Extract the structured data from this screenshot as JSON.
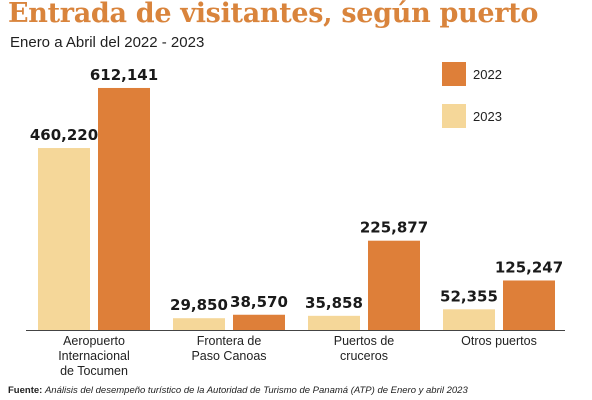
{
  "chart_data": {
    "type": "bar",
    "title": "Entrada de visitantes, según puerto",
    "subtitle": "Enero a Abril del 2022 - 2023",
    "categories": [
      [
        "Aeropuerto",
        "Internacional",
        "de Tocumen"
      ],
      [
        "Frontera de",
        "Paso Canoas"
      ],
      [
        "Puertos de",
        "cruceros"
      ],
      [
        "Otros puertos"
      ]
    ],
    "series": [
      {
        "name": "2023",
        "color": "#f5d799",
        "values": [
          460220,
          29850,
          35858,
          52355
        ],
        "labels": [
          "460,220",
          "29,850",
          "35,858",
          "52,355"
        ]
      },
      {
        "name": "2022",
        "color": "#de7f39",
        "values": [
          612141,
          38570,
          225877,
          125247
        ],
        "labels": [
          "612,141",
          "38,570",
          "225,877",
          "125,247"
        ]
      }
    ],
    "ylim": [
      0,
      650000
    ],
    "legend_position": "top-right",
    "grid": false
  },
  "footer": {
    "label": "Fuente:",
    "source": "Análisis del desempeño turístico de la Autoridad de Turismo de Panamá (ATP) de Enero y abril 2023"
  }
}
